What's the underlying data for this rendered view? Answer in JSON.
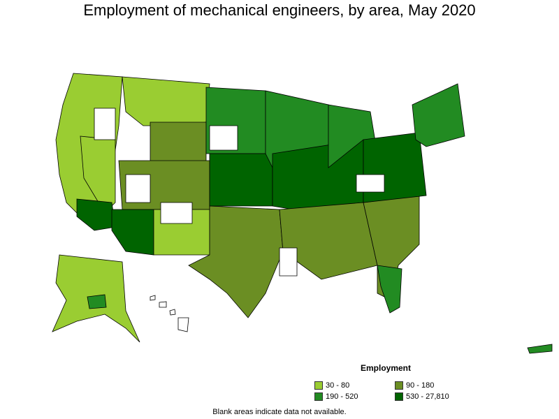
{
  "title": "Employment of mechanical engineers, by area, May 2020",
  "legend": {
    "title": "Employment",
    "items": [
      {
        "label": "30 - 80",
        "color": "#9acd32"
      },
      {
        "label": "90 - 180",
        "color": "#6b8e23"
      },
      {
        "label": "190 - 520",
        "color": "#228b22"
      },
      {
        "label": "530 - 27,810",
        "color": "#006400"
      }
    ]
  },
  "note": "Blank areas indicate data not available.",
  "colors": {
    "outline": "#000000",
    "no_data": "#ffffff"
  }
}
